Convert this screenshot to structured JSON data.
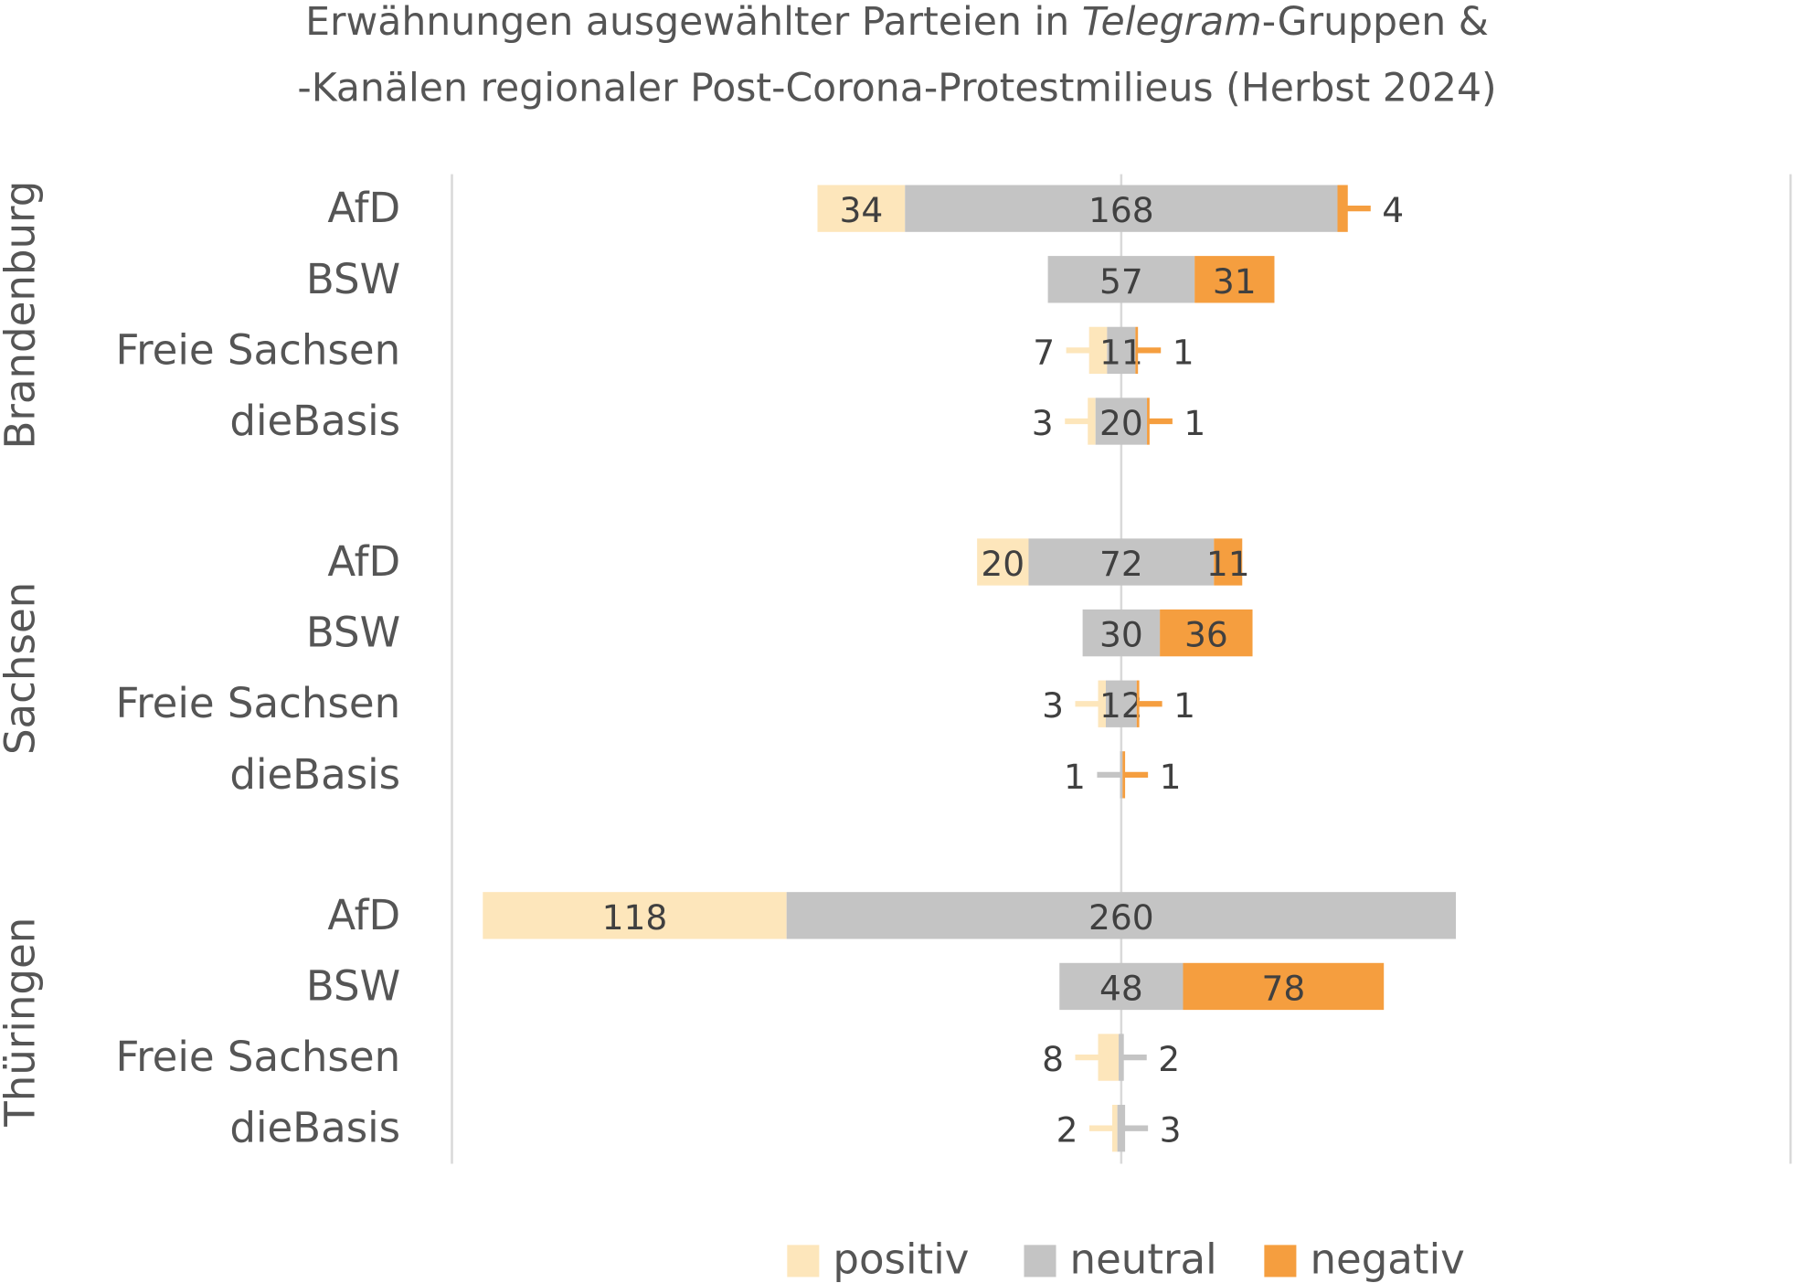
{
  "chart_data": {
    "type": "bar",
    "subtype": "diverging-stacked-horizontal",
    "title_line1_pre": "Erwähnungen ausgewählter Parteien in ",
    "title_italic": "Telegram",
    "title_line1_post": "-Gruppen &",
    "title_line2": "-Kanälen regionaler Post-Corona-Protestmilieus (Herbst 2024)",
    "xlim": [
      -260,
      260
    ],
    "grid": false,
    "legend_position": "bottom",
    "series": [
      {
        "key": "positive",
        "name": "positiv",
        "color": "#FDE6BB"
      },
      {
        "key": "neutral",
        "name": "neutral",
        "color": "#C4C4C4"
      },
      {
        "key": "negative",
        "name": "negativ",
        "color": "#F59E3F"
      }
    ],
    "groups": [
      {
        "name": "Brandenburg",
        "rows": [
          {
            "party": "AfD",
            "positive": 34,
            "neutral": 168,
            "negative": 4
          },
          {
            "party": "BSW",
            "positive": 0,
            "neutral": 57,
            "negative": 31
          },
          {
            "party": "Freie Sachsen",
            "positive": 7,
            "neutral": 11,
            "negative": 1
          },
          {
            "party": "dieBasis",
            "positive": 3,
            "neutral": 20,
            "negative": 1
          }
        ]
      },
      {
        "name": "Sachsen",
        "rows": [
          {
            "party": "AfD",
            "positive": 20,
            "neutral": 72,
            "negative": 11
          },
          {
            "party": "BSW",
            "positive": 0,
            "neutral": 30,
            "negative": 36
          },
          {
            "party": "Freie Sachsen",
            "positive": 3,
            "neutral": 12,
            "negative": 1
          },
          {
            "party": "dieBasis",
            "positive": 0,
            "neutral": 1,
            "negative": 1
          }
        ]
      },
      {
        "name": "Thüringen",
        "rows": [
          {
            "party": "AfD",
            "positive": 118,
            "neutral": 260,
            "negative": 0
          },
          {
            "party": "BSW",
            "positive": 0,
            "neutral": 48,
            "negative": 78
          },
          {
            "party": "Freie Sachsen",
            "positive": 8,
            "neutral": 2,
            "negative": 0
          },
          {
            "party": "dieBasis",
            "positive": 2,
            "neutral": 3,
            "negative": 0
          }
        ]
      }
    ]
  }
}
